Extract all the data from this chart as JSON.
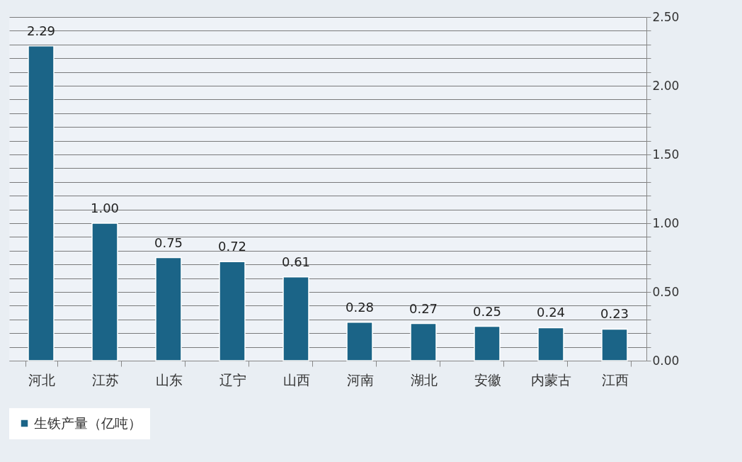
{
  "chart_data": {
    "type": "bar",
    "categories": [
      "河北",
      "江苏",
      "山东",
      "辽宁",
      "山西",
      "河南",
      "湖北",
      "安徽",
      "内蒙古",
      "江西"
    ],
    "series": [
      {
        "name": "生铁产量（亿吨）",
        "color": "#1b6487",
        "values": [
          2.29,
          1.0,
          0.75,
          0.72,
          0.61,
          0.28,
          0.27,
          0.25,
          0.24,
          0.23
        ],
        "value_labels": [
          "2.29",
          "1.00",
          "0.75",
          "0.72",
          "0.61",
          "0.28",
          "0.27",
          "0.25",
          "0.24",
          "0.23"
        ]
      }
    ],
    "ylim": [
      0,
      2.5
    ],
    "yticks": [
      {
        "value": 0,
        "label": "0.00"
      },
      {
        "value": 0.1,
        "label": null
      },
      {
        "value": 0.2,
        "label": null
      },
      {
        "value": 0.3,
        "label": null
      },
      {
        "value": 0.4,
        "label": null
      },
      {
        "value": 0.5,
        "label": "0.50"
      },
      {
        "value": 0.6,
        "label": null
      },
      {
        "value": 0.7,
        "label": null
      },
      {
        "value": 0.8,
        "label": null
      },
      {
        "value": 0.9,
        "label": null
      },
      {
        "value": 1,
        "label": "1.00"
      },
      {
        "value": 1.1,
        "label": null
      },
      {
        "value": 1.2,
        "label": null
      },
      {
        "value": 1.3,
        "label": null
      },
      {
        "value": 1.4,
        "label": null
      },
      {
        "value": 1.5,
        "label": "1.50"
      },
      {
        "value": 1.6,
        "label": null
      },
      {
        "value": 1.7,
        "label": null
      },
      {
        "value": 1.8,
        "label": null
      },
      {
        "value": 1.9,
        "label": null
      },
      {
        "value": 2,
        "label": "2.00"
      },
      {
        "value": 2.1,
        "label": null
      },
      {
        "value": 2.2,
        "label": null
      },
      {
        "value": 2.3,
        "label": null
      },
      {
        "value": 2.4,
        "label": null
      },
      {
        "value": 2.5,
        "label": "2.50"
      }
    ],
    "grid": true,
    "legend": "bottom"
  }
}
